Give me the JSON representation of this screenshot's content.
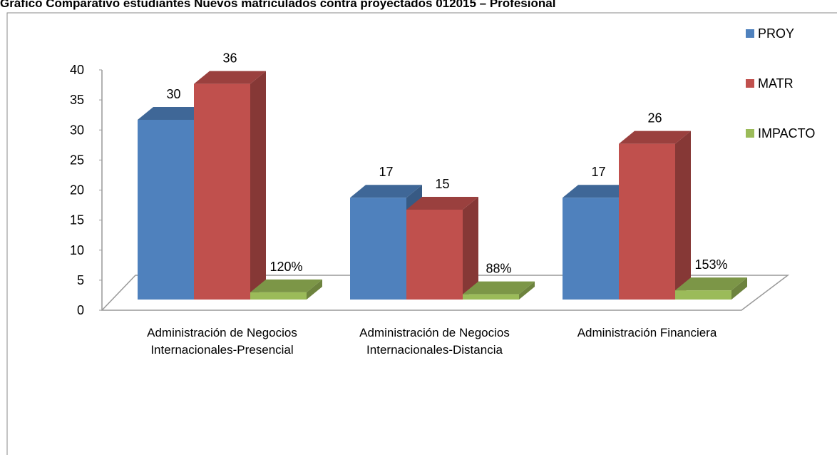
{
  "chart_data": {
    "type": "bar3d",
    "title": "Gráfico Comparativo estudiantes Nuevos matriculados contra proyectados 012015 – Profesional",
    "categories": [
      "Administración de Negocios Internacionales-Presencial",
      "Administración de Negocios Internacionales-Distancia",
      "Administración Financiera"
    ],
    "series": [
      {
        "name": "PROY",
        "color": "#4f81bd",
        "values": [
          30,
          17,
          17
        ]
      },
      {
        "name": "MATR",
        "color": "#c0504d",
        "values": [
          36,
          15,
          26
        ]
      },
      {
        "name": "IMPACTO",
        "color": "#9bbb59",
        "values": [
          1.2,
          0.88,
          1.53
        ],
        "value_labels": [
          "120%",
          "88%",
          "153%"
        ]
      }
    ],
    "ylim": [
      0,
      40
    ],
    "yticks": [
      0,
      5,
      10,
      15,
      20,
      25,
      30,
      35,
      40
    ],
    "legend": "right"
  }
}
